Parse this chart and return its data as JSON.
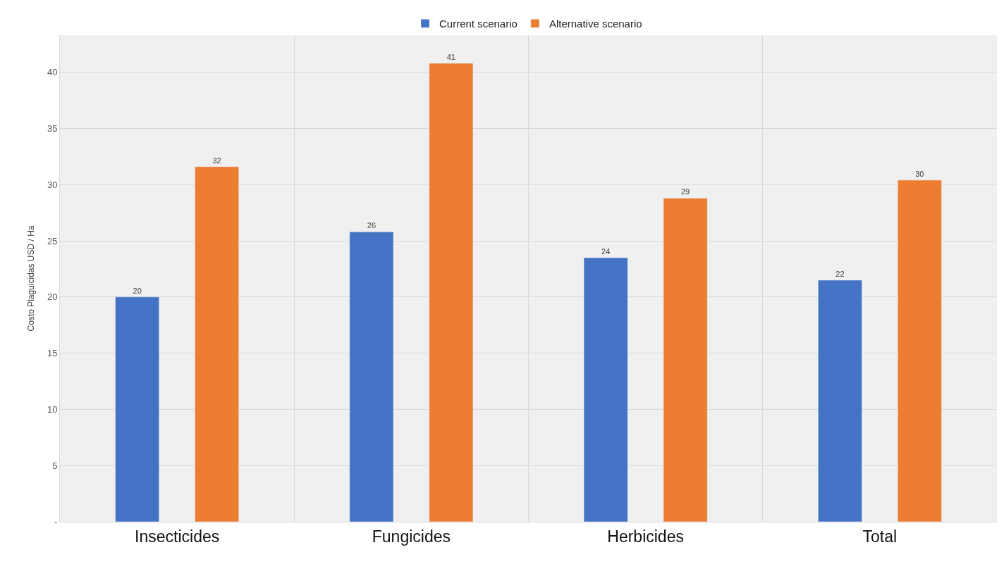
{
  "chart_data": {
    "type": "bar",
    "ylabel": "Costo Plaguicidas USD / Ha",
    "categories": [
      "Insecticides",
      "Fungicides",
      "Herbicides",
      "Total"
    ],
    "series": [
      {
        "name": "Current scenario",
        "color": "#4472c4",
        "values": [
          20.0,
          25.8,
          23.5,
          21.5
        ],
        "value_labels": [
          "20",
          "26",
          "24",
          "22"
        ]
      },
      {
        "name": "Alternative scenario",
        "color": "#ed7d31",
        "values": [
          31.6,
          40.8,
          28.8,
          30.4
        ],
        "value_labels": [
          "32",
          "41",
          "29",
          "30"
        ]
      }
    ],
    "ylim": [
      0,
      43.3
    ],
    "yticks": [
      {
        "value": 0,
        "label": "-"
      },
      5,
      10,
      15,
      20,
      25,
      30,
      35,
      40
    ],
    "grid": true,
    "legend": "top"
  }
}
